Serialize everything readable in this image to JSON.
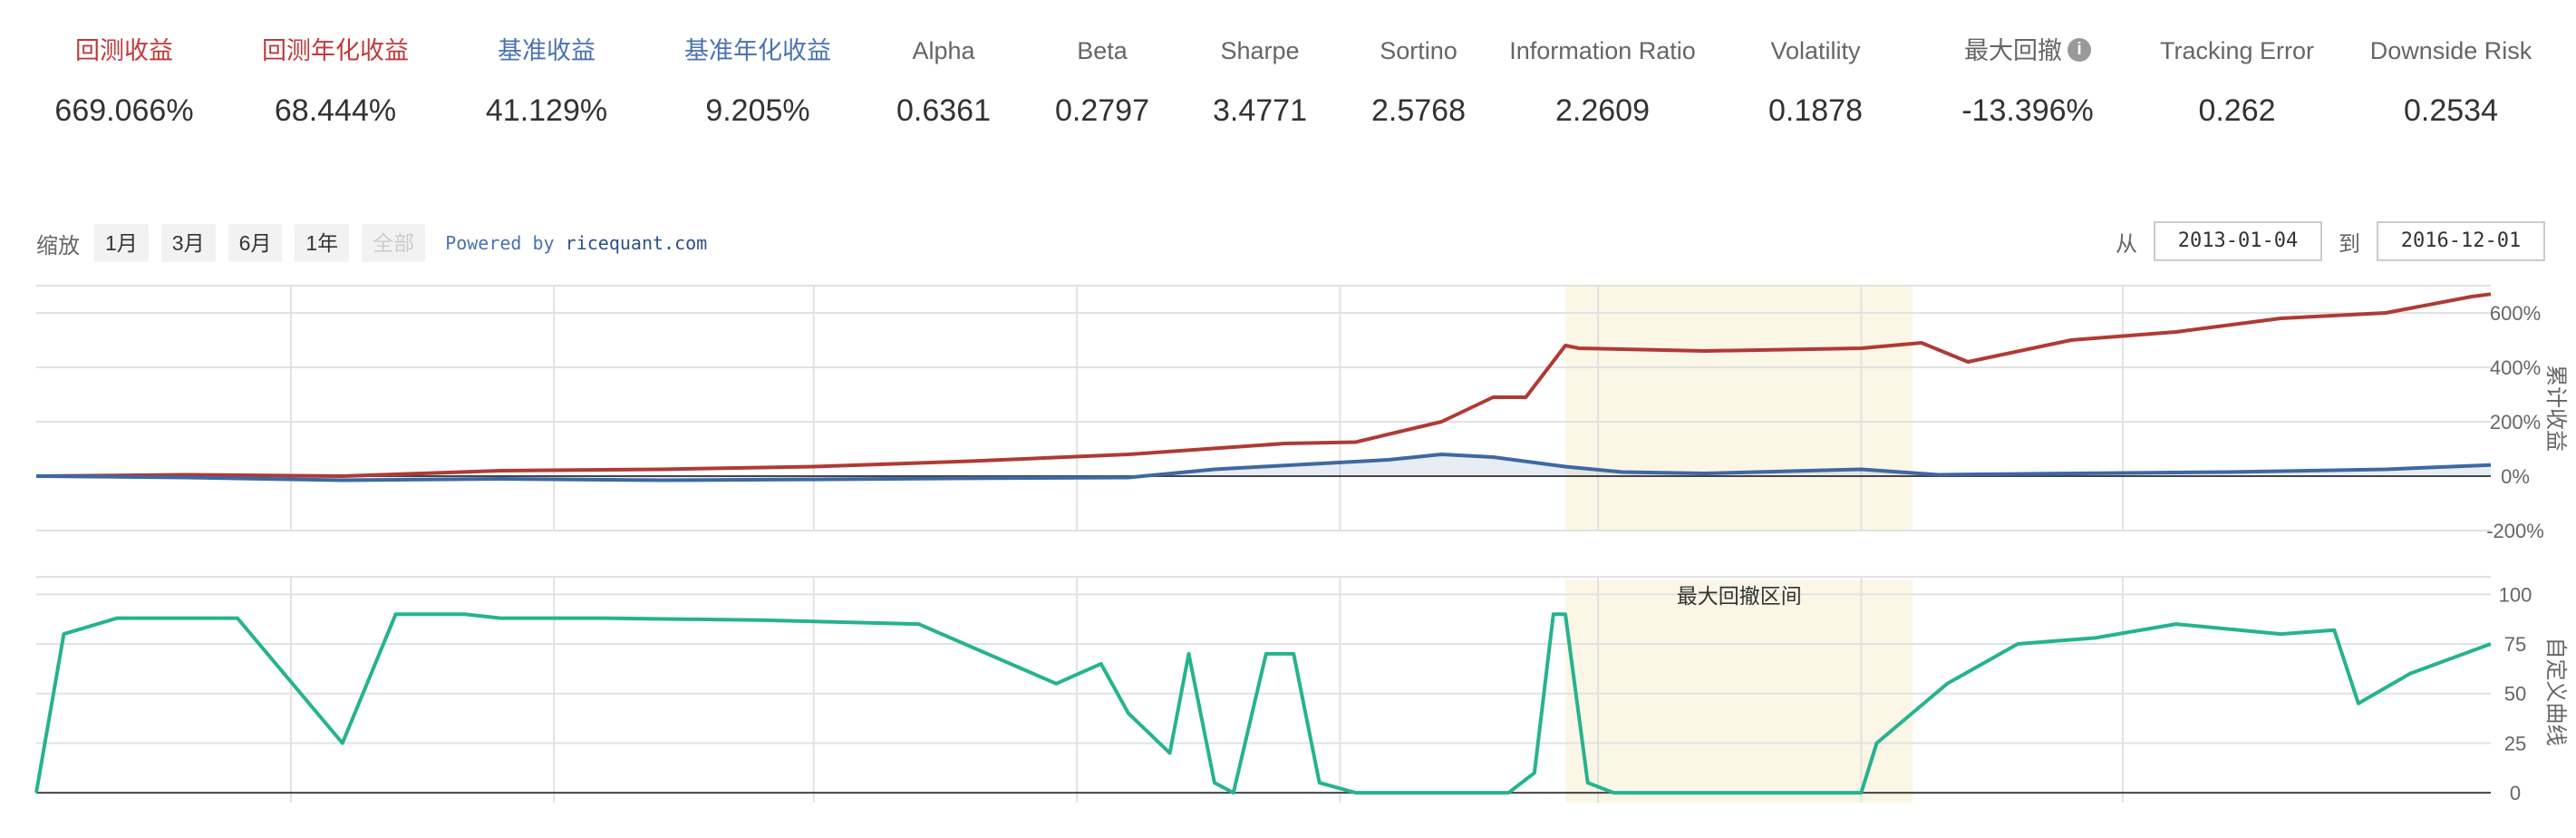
{
  "metrics": [
    {
      "label": "回测收益",
      "value": "669.066%",
      "color": "#c0393b"
    },
    {
      "label": "回测年化收益",
      "value": "68.444%",
      "color": "#c0393b"
    },
    {
      "label": "基准收益",
      "value": "41.129%",
      "color": "#4a72b0"
    },
    {
      "label": "基准年化收益",
      "value": "9.205%",
      "color": "#4a72b0"
    },
    {
      "label": "Alpha",
      "value": "0.6361"
    },
    {
      "label": "Beta",
      "value": "0.2797"
    },
    {
      "label": "Sharpe",
      "value": "3.4771"
    },
    {
      "label": "Sortino",
      "value": "2.5768"
    },
    {
      "label": "Information Ratio",
      "value": "2.2609"
    },
    {
      "label": "Volatility",
      "value": "0.1878"
    },
    {
      "label": "最大回撤",
      "value": "-13.396%",
      "icon": "info-icon"
    },
    {
      "label": "Tracking Error",
      "value": "0.262"
    },
    {
      "label": "Downside Risk",
      "value": "0.2534"
    }
  ],
  "zoom": {
    "label": "缩放",
    "buttons": [
      "1月",
      "3月",
      "6月",
      "1年",
      "全部"
    ],
    "active": "全部"
  },
  "powered": {
    "prefix": "Powered by",
    "brand": "ricequant.com"
  },
  "range": {
    "from_label": "从",
    "from": "2013-01-04",
    "to_label": "到",
    "to": "2016-12-01"
  },
  "chart_data": [
    {
      "type": "line",
      "ylabel": "累计收益",
      "ylim": [
        -200,
        700
      ],
      "yticks": [
        "600%",
        "400%",
        "200%",
        "0%",
        "-200%"
      ],
      "ytick_values": [
        600,
        400,
        200,
        0,
        -200
      ],
      "x_range": [
        "2013-01-04",
        "2016-12-01"
      ],
      "max_drawdown_period": [
        "2015-06-12",
        "2015-12-31"
      ],
      "series": [
        {
          "name": "回测收益",
          "color": "#b03a35",
          "x": [
            "2013-01-04",
            "2013-04-01",
            "2013-07-01",
            "2013-10-01",
            "2014-01-02",
            "2014-04-01",
            "2014-07-01",
            "2014-10-01",
            "2014-12-31",
            "2015-02-10",
            "2015-04-01",
            "2015-05-01",
            "2015-05-20",
            "2015-06-12",
            "2015-06-20",
            "2015-09-01",
            "2015-12-01",
            "2016-01-05",
            "2016-02-01",
            "2016-04-01",
            "2016-06-01",
            "2016-08-01",
            "2016-10-01",
            "2016-11-20",
            "2016-12-01"
          ],
          "y": [
            0,
            5,
            0,
            20,
            25,
            35,
            55,
            80,
            120,
            125,
            200,
            290,
            290,
            480,
            470,
            460,
            470,
            490,
            420,
            500,
            530,
            580,
            600,
            660,
            669
          ]
        },
        {
          "name": "基准收益",
          "color": "#3e68a3",
          "x": [
            "2013-01-04",
            "2013-04-01",
            "2013-07-01",
            "2013-10-01",
            "2014-01-02",
            "2014-04-01",
            "2014-07-01",
            "2014-10-01",
            "2014-11-20",
            "2015-01-02",
            "2015-03-01",
            "2015-04-01",
            "2015-05-01",
            "2015-06-12",
            "2015-07-15",
            "2015-09-01",
            "2015-12-01",
            "2016-01-15",
            "2016-04-01",
            "2016-07-01",
            "2016-10-01",
            "2016-12-01"
          ],
          "y": [
            0,
            -5,
            -15,
            -10,
            -15,
            -12,
            -8,
            -5,
            25,
            40,
            60,
            80,
            70,
            35,
            15,
            10,
            25,
            5,
            10,
            15,
            25,
            41
          ]
        }
      ]
    },
    {
      "type": "line",
      "ylabel": "自定义曲线",
      "ylim": [
        0,
        100
      ],
      "yticks": [
        "100",
        "75",
        "50",
        "25",
        "0"
      ],
      "ytick_values": [
        100,
        75,
        50,
        25,
        0
      ],
      "annotation": "最大回撤区间",
      "series": [
        {
          "name": "自定义曲线",
          "color": "#26b38f",
          "x": [
            "2013-01-04",
            "2013-01-20",
            "2013-02-20",
            "2013-05-01",
            "2013-07-01",
            "2013-08-01",
            "2013-09-10",
            "2013-10-01",
            "2013-12-01",
            "2014-03-01",
            "2014-06-01",
            "2014-08-20",
            "2014-09-15",
            "2014-10-01",
            "2014-10-25",
            "2014-11-05",
            "2014-11-20",
            "2014-12-01",
            "2014-12-20",
            "2015-01-05",
            "2015-01-20",
            "2015-02-10",
            "2015-03-15",
            "2015-04-01",
            "2015-05-10",
            "2015-05-25",
            "2015-06-05",
            "2015-06-12",
            "2015-06-25",
            "2015-07-10",
            "2015-08-01",
            "2015-12-01",
            "2015-12-10",
            "2016-01-20",
            "2016-03-01",
            "2016-04-15",
            "2016-06-01",
            "2016-08-01",
            "2016-09-01",
            "2016-09-15",
            "2016-10-15",
            "2016-12-01"
          ],
          "y": [
            0,
            80,
            88,
            88,
            25,
            90,
            90,
            88,
            88,
            87,
            85,
            55,
            65,
            40,
            20,
            70,
            5,
            0,
            70,
            70,
            5,
            0,
            0,
            0,
            0,
            10,
            90,
            90,
            5,
            0,
            0,
            0,
            25,
            55,
            75,
            78,
            85,
            80,
            82,
            45,
            60,
            75
          ]
        }
      ]
    }
  ]
}
